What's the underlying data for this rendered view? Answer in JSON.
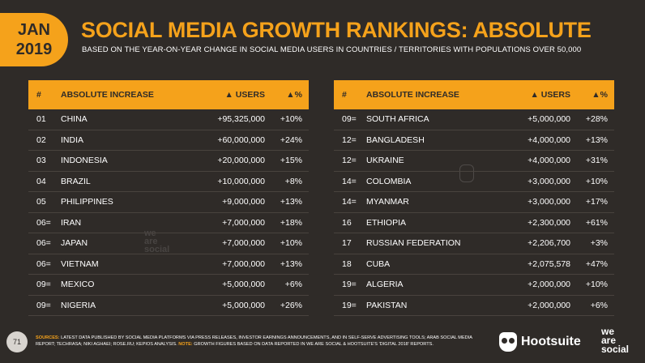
{
  "badge": {
    "month": "JAN",
    "year": "2019"
  },
  "title": "SOCIAL MEDIA GROWTH RANKINGS: ABSOLUTE",
  "subtitle": "BASED ON THE YEAR-ON-YEAR CHANGE IN SOCIAL MEDIA USERS IN COUNTRIES / TERRITORIES WITH POPULATIONS OVER 50,000",
  "table_headers": {
    "rank": "#",
    "name": "ABSOLUTE INCREASE",
    "users": "▲ USERS",
    "pct": "▲%"
  },
  "left_rows": [
    {
      "rank": "01",
      "name": "CHINA",
      "users": "+95,325,000",
      "pct": "+10%"
    },
    {
      "rank": "02",
      "name": "INDIA",
      "users": "+60,000,000",
      "pct": "+24%"
    },
    {
      "rank": "03",
      "name": "INDONESIA",
      "users": "+20,000,000",
      "pct": "+15%"
    },
    {
      "rank": "04",
      "name": "BRAZIL",
      "users": "+10,000,000",
      "pct": "+8%"
    },
    {
      "rank": "05",
      "name": "PHILIPPINES",
      "users": "+9,000,000",
      "pct": "+13%"
    },
    {
      "rank": "06=",
      "name": "IRAN",
      "users": "+7,000,000",
      "pct": "+18%"
    },
    {
      "rank": "06=",
      "name": "JAPAN",
      "users": "+7,000,000",
      "pct": "+10%"
    },
    {
      "rank": "06=",
      "name": "VIETNAM",
      "users": "+7,000,000",
      "pct": "+13%"
    },
    {
      "rank": "09=",
      "name": "MEXICO",
      "users": "+5,000,000",
      "pct": "+6%"
    },
    {
      "rank": "09=",
      "name": "NIGERIA",
      "users": "+5,000,000",
      "pct": "+26%"
    }
  ],
  "right_rows": [
    {
      "rank": "09=",
      "name": "SOUTH AFRICA",
      "users": "+5,000,000",
      "pct": "+28%"
    },
    {
      "rank": "12=",
      "name": "BANGLADESH",
      "users": "+4,000,000",
      "pct": "+13%"
    },
    {
      "rank": "12=",
      "name": "UKRAINE",
      "users": "+4,000,000",
      "pct": "+31%"
    },
    {
      "rank": "14=",
      "name": "COLOMBIA",
      "users": "+3,000,000",
      "pct": "+10%"
    },
    {
      "rank": "14=",
      "name": "MYANMAR",
      "users": "+3,000,000",
      "pct": "+17%"
    },
    {
      "rank": "16",
      "name": "ETHIOPIA",
      "users": "+2,300,000",
      "pct": "+61%"
    },
    {
      "rank": "17",
      "name": "RUSSIAN FEDERATION",
      "users": "+2,206,700",
      "pct": "+3%"
    },
    {
      "rank": "18",
      "name": "CUBA",
      "users": "+2,075,578",
      "pct": "+47%"
    },
    {
      "rank": "19=",
      "name": "ALGERIA",
      "users": "+2,000,000",
      "pct": "+10%"
    },
    {
      "rank": "19=",
      "name": "PAKISTAN",
      "users": "+2,000,000",
      "pct": "+6%"
    }
  ],
  "footer": {
    "page": "71",
    "sources_label": "SOURCES:",
    "sources_text": " LATEST DATA PUBLISHED BY SOCIAL MEDIA PLATFORMS VIA PRESS RELEASES, INVESTOR EARNINGS ANNOUNCEMENTS, AND IN SELF-SERVE ADVERTISING TOOLS; ARAB SOCIAL MEDIA REPORT; TECHRASA; NIKI AGHAEI; ROSE.RU; KEPIOS ANALYSIS. ",
    "note_label": "NOTE:",
    "note_text": " GROWTH FIGURES BASED ON DATA REPORTED IN WE ARE SOCIAL & HOOTSUITE'S 'DIGITAL 2018' REPORTS.",
    "hootsuite": "Hootsuite",
    "we": "we",
    "are": "are",
    "social": "social"
  },
  "watermark": {
    "we": "we",
    "are": "are",
    "social": "social"
  },
  "colors": {
    "accent": "#f5a21b",
    "background": "#2f2b28"
  }
}
